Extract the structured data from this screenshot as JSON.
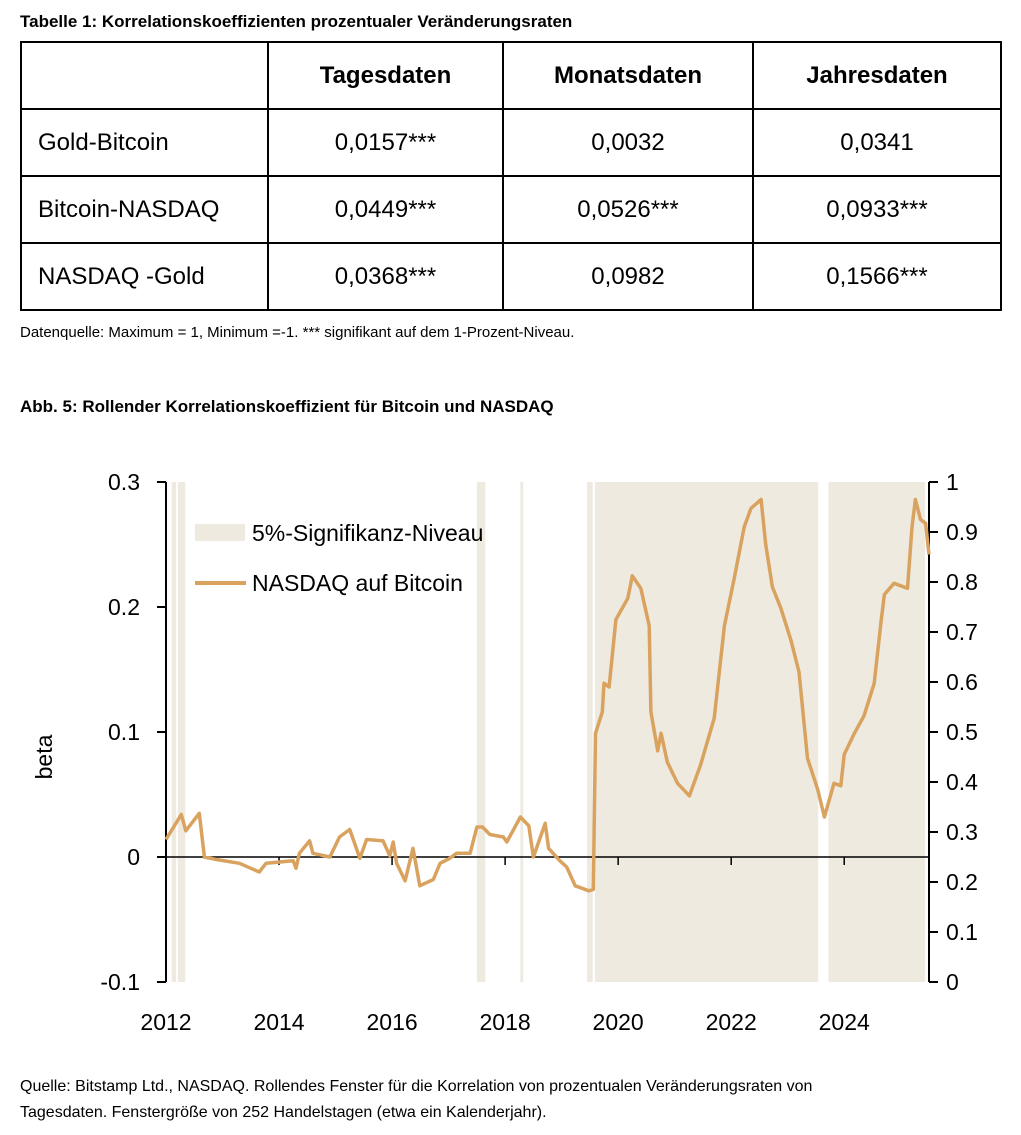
{
  "table": {
    "title": "Tabelle 1: Korrelationskoeffizienten prozentualer Veränderungsraten",
    "headers": [
      "",
      "Tagesdaten",
      "Monatsdaten",
      "Jahresdaten"
    ],
    "rows": [
      [
        "Gold-Bitcoin",
        "0,0157***",
        "0,0032",
        "0,0341"
      ],
      [
        "Bitcoin-NASDAQ",
        "0,0449***",
        "0,0526***",
        "0,0933***"
      ],
      [
        "NASDAQ -Gold",
        "0,0368***",
        "0,0982",
        "0,1566***"
      ]
    ],
    "note": "Datenquelle: Maximum = 1, Minimum =-1. *** signifikant auf dem 1-Prozent-Niveau."
  },
  "figure": {
    "title": "Abb. 5: Rollender Korrelationskoeffizient für Bitcoin und NASDAQ",
    "source_line1": "Quelle: Bitstamp Ltd., NASDAQ. Rollendes Fenster für die Korrelation von prozentualen Veränderungsraten von",
    "source_line2": "Tagesdaten. Fenstergröße von 252 Handelstagen (etwa ein Kalenderjahr)."
  },
  "chart_data": {
    "type": "line",
    "title": "",
    "xlabel": "",
    "ylabel": "beta",
    "xlim": [
      2012,
      2025.5
    ],
    "ylim": [
      -0.1,
      0.3
    ],
    "y2lim": [
      0,
      1
    ],
    "x_ticks": [
      "2012",
      "2014",
      "2016",
      "2018",
      "2020",
      "2022",
      "2024"
    ],
    "y_ticks": [
      "0.3",
      "0.2",
      "0.1",
      "0",
      "-0.1"
    ],
    "y_tick_values": [
      0.3,
      0.2,
      0.1,
      0,
      -0.1
    ],
    "y2_ticks": [
      "1",
      "0.9",
      "0.8",
      "0.7",
      "0.6",
      "0.5",
      "0.4",
      "0.3",
      "0.2",
      "0.1",
      "0"
    ],
    "y2_tick_values": [
      1,
      0.9,
      0.8,
      0.7,
      0.6,
      0.5,
      0.4,
      0.3,
      0.2,
      0.1,
      0
    ],
    "legend_placement": "top-left",
    "legend": {
      "band": "5%-Signifikanz-Niveau",
      "line": "NASDAQ auf Bitcoin"
    },
    "colors": {
      "line": "#d9a35f",
      "band": "#eeeae0",
      "axis": "#000000"
    },
    "significance_bands": [
      [
        2012.1,
        2012.18
      ],
      [
        2012.21,
        2012.34
      ],
      [
        2017.5,
        2017.65
      ],
      [
        2018.27,
        2018.32
      ],
      [
        2019.45,
        2019.55
      ],
      [
        2019.59,
        2023.54
      ],
      [
        2023.72,
        2025.43
      ]
    ],
    "series": [
      {
        "name": "NASDAQ auf Bitcoin",
        "axis": "left",
        "points": [
          [
            2012.0,
            0.014
          ],
          [
            2012.27,
            0.034
          ],
          [
            2012.35,
            0.021
          ],
          [
            2012.59,
            0.035
          ],
          [
            2012.68,
            0.0
          ],
          [
            2012.89,
            -0.002
          ],
          [
            2013.3,
            -0.005
          ],
          [
            2013.65,
            -0.012
          ],
          [
            2013.77,
            -0.005
          ],
          [
            2014.25,
            -0.003
          ],
          [
            2014.3,
            -0.009
          ],
          [
            2014.36,
            0.003
          ],
          [
            2014.54,
            0.013
          ],
          [
            2014.6,
            0.003
          ],
          [
            2014.9,
            0.0
          ],
          [
            2015.07,
            0.016
          ],
          [
            2015.25,
            0.022
          ],
          [
            2015.43,
            -0.001
          ],
          [
            2015.55,
            0.014
          ],
          [
            2015.84,
            0.013
          ],
          [
            2015.96,
            0.001
          ],
          [
            2016.02,
            0.012
          ],
          [
            2016.08,
            -0.005
          ],
          [
            2016.23,
            -0.019
          ],
          [
            2016.37,
            0.007
          ],
          [
            2016.49,
            -0.023
          ],
          [
            2016.73,
            -0.018
          ],
          [
            2016.85,
            -0.005
          ],
          [
            2017.02,
            -0.001
          ],
          [
            2017.14,
            0.003
          ],
          [
            2017.38,
            0.003
          ],
          [
            2017.5,
            0.024
          ],
          [
            2017.6,
            0.024
          ],
          [
            2017.73,
            0.018
          ],
          [
            2017.97,
            0.016
          ],
          [
            2018.03,
            0.012
          ],
          [
            2018.27,
            0.032
          ],
          [
            2018.42,
            0.025
          ],
          [
            2018.5,
            0.0
          ],
          [
            2018.71,
            0.027
          ],
          [
            2018.77,
            0.007
          ],
          [
            2018.97,
            -0.003
          ],
          [
            2019.09,
            -0.008
          ],
          [
            2019.24,
            -0.023
          ],
          [
            2019.48,
            -0.027
          ],
          [
            2019.56,
            -0.026
          ],
          [
            2019.6,
            0.099
          ],
          [
            2019.72,
            0.116
          ],
          [
            2019.75,
            0.139
          ],
          [
            2019.84,
            0.136
          ],
          [
            2019.96,
            0.19
          ],
          [
            2020.17,
            0.207
          ],
          [
            2020.25,
            0.225
          ],
          [
            2020.4,
            0.215
          ],
          [
            2020.55,
            0.185
          ],
          [
            2020.58,
            0.116
          ],
          [
            2020.7,
            0.085
          ],
          [
            2020.76,
            0.099
          ],
          [
            2020.87,
            0.076
          ],
          [
            2021.05,
            0.059
          ],
          [
            2021.26,
            0.049
          ],
          [
            2021.46,
            0.074
          ],
          [
            2021.7,
            0.111
          ],
          [
            2021.88,
            0.185
          ],
          [
            2022.05,
            0.222
          ],
          [
            2022.23,
            0.264
          ],
          [
            2022.35,
            0.279
          ],
          [
            2022.53,
            0.286
          ],
          [
            2022.61,
            0.25
          ],
          [
            2022.73,
            0.216
          ],
          [
            2022.88,
            0.199
          ],
          [
            2023.06,
            0.173
          ],
          [
            2023.2,
            0.148
          ],
          [
            2023.35,
            0.079
          ],
          [
            2023.53,
            0.054
          ],
          [
            2023.65,
            0.032
          ],
          [
            2023.82,
            0.059
          ],
          [
            2023.94,
            0.057
          ],
          [
            2024.0,
            0.082
          ],
          [
            2024.18,
            0.099
          ],
          [
            2024.35,
            0.113
          ],
          [
            2024.53,
            0.139
          ],
          [
            2024.65,
            0.188
          ],
          [
            2024.71,
            0.21
          ],
          [
            2024.88,
            0.219
          ],
          [
            2025.12,
            0.215
          ],
          [
            2025.2,
            0.264
          ],
          [
            2025.26,
            0.286
          ],
          [
            2025.35,
            0.27
          ],
          [
            2025.44,
            0.267
          ],
          [
            2025.5,
            0.242
          ]
        ]
      }
    ]
  }
}
